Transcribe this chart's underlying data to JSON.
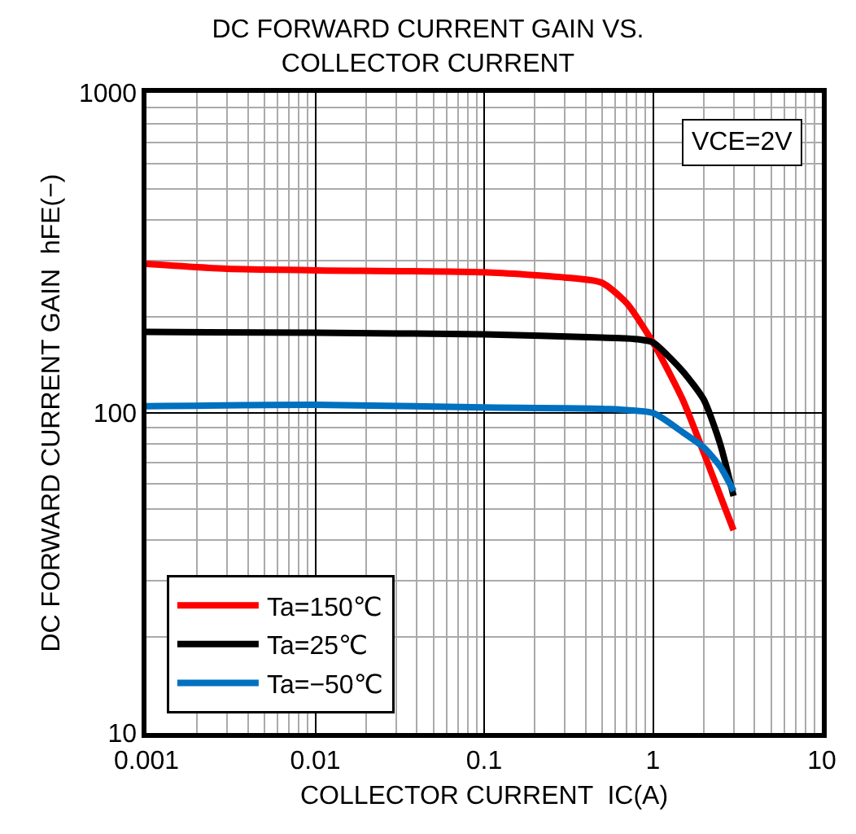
{
  "chart_data": {
    "type": "line",
    "title": "DC FORWARD CURRENT GAIN VS.\nCOLLECTOR CURRENT",
    "xlabel": "COLLECTOR CURRENT  IC(A)",
    "ylabel": "DC FORWARD CURRENT GAIN  hFE(−)",
    "log": "xy",
    "grid": true,
    "legend": "bottom left",
    "marker": "none",
    "line_style": "solid",
    "xlim": [
      0.001,
      10
    ],
    "ylim": [
      10,
      1000
    ],
    "xticks": [
      0.001,
      0.01,
      0.1,
      1,
      10
    ],
    "yticks": [
      10,
      100,
      1000
    ],
    "annotations": [
      "VCE=2V"
    ],
    "series": [
      {
        "name": "Ta=150℃",
        "color": "#ff0000",
        "x": [
          0.001,
          0.003,
          0.01,
          0.1,
          0.3,
          0.5,
          0.7,
          1,
          1.5,
          2,
          3
        ],
        "values": [
          292,
          282,
          279,
          275,
          265,
          255,
          220,
          166,
          110,
          75,
          43
        ]
      },
      {
        "name": "Ta=25℃",
        "color": "#000000",
        "x": [
          0.001,
          0.01,
          0.1,
          0.5,
          0.8,
          1,
          1.5,
          2,
          2.5,
          3
        ],
        "values": [
          179,
          178,
          176,
          172,
          170,
          166,
          135,
          110,
          80,
          55
        ]
      },
      {
        "name": "Ta=−50℃",
        "color": "#0070c0",
        "x": [
          0.001,
          0.01,
          0.1,
          0.5,
          1,
          1.5,
          2,
          2.5,
          3
        ],
        "values": [
          105,
          106,
          104,
          103,
          100,
          87,
          78,
          68,
          57
        ]
      }
    ]
  }
}
